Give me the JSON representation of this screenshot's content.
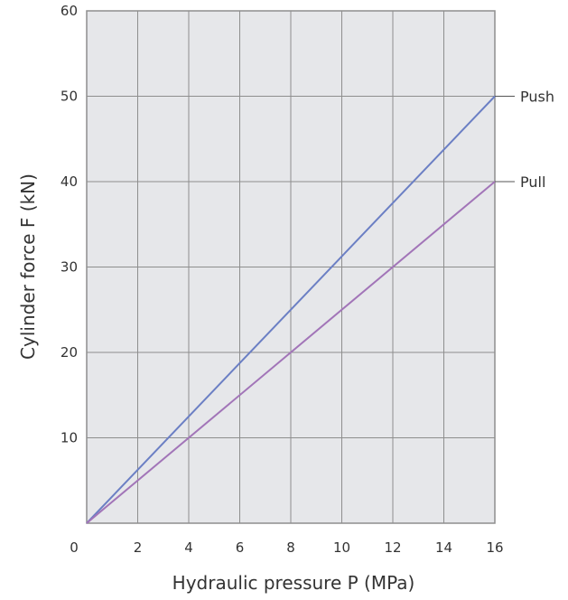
{
  "chart_data": {
    "type": "line",
    "xlabel": "Hydraulic pressure P (MPa)",
    "ylabel": "Cylinder force F (kN)",
    "xlim": [
      0,
      16
    ],
    "ylim": [
      0,
      60
    ],
    "x_ticks": [
      0,
      2,
      4,
      6,
      8,
      10,
      12,
      14,
      16
    ],
    "y_ticks": [
      10,
      20,
      30,
      40,
      50,
      60
    ],
    "grid": true,
    "legend": "labels at right end of each line",
    "series": [
      {
        "name": "Push",
        "x": [
          0,
          16
        ],
        "y": [
          0,
          50
        ],
        "color": "#6b7fc4"
      },
      {
        "name": "Pull",
        "x": [
          0,
          16
        ],
        "y": [
          0,
          40
        ],
        "color": "#a275b8"
      }
    ],
    "colors": {
      "plot_background": "#e6e7ea",
      "grid": "#8e8e8e",
      "frame": "#8e8e8e"
    }
  }
}
